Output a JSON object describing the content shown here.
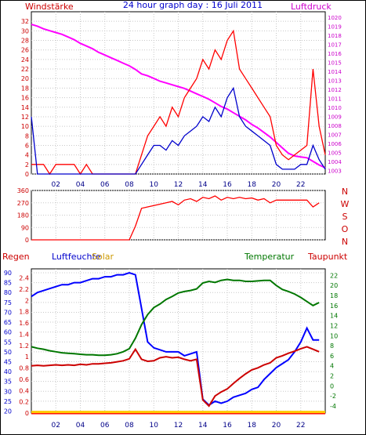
{
  "title": "24 hour graph day : 16 Juli 2011",
  "chart_data": [
    {
      "type": "line",
      "left_label": "Windstärke",
      "right_label": "Luftdruck",
      "x_ticks": [
        "02",
        "04",
        "06",
        "08",
        "10",
        "12",
        "14",
        "16",
        "18",
        "20",
        "22"
      ],
      "x_range_hours": [
        0,
        24
      ],
      "y_left_ticks": [
        0,
        2,
        4,
        6,
        8,
        10,
        12,
        14,
        16,
        18,
        20,
        22,
        24,
        26,
        28,
        30,
        32
      ],
      "y_left_range": [
        0,
        34
      ],
      "y_right_ticks": [
        1003,
        1004,
        1005,
        1006,
        1007,
        1008,
        1009,
        1010,
        1011,
        1012,
        1013,
        1014,
        1015,
        1016,
        1017,
        1018,
        1019,
        1020
      ],
      "y_right_range": [
        1002.6,
        1020.6
      ],
      "grid": true,
      "series": [
        {
          "name": "Luftdruck",
          "axis": "right",
          "color": "#ff00ff",
          "x": [
            0,
            0.5,
            1,
            1.5,
            2,
            2.5,
            3,
            3.5,
            4,
            4.5,
            5,
            5.5,
            6,
            6.5,
            7,
            7.5,
            8,
            8.5,
            9,
            9.5,
            10,
            10.5,
            11,
            11.5,
            12,
            12.5,
            13,
            13.5,
            14,
            14.5,
            15,
            15.5,
            16,
            16.5,
            17,
            17.5,
            18,
            18.5,
            19,
            19.5,
            20,
            20.5,
            21,
            21.5,
            22,
            22.5,
            23,
            23.5,
            24
          ],
          "y": [
            1019.2,
            1019.0,
            1018.7,
            1018.5,
            1018.3,
            1018.1,
            1017.8,
            1017.5,
            1017.1,
            1016.8,
            1016.5,
            1016.1,
            1015.8,
            1015.5,
            1015.2,
            1014.9,
            1014.6,
            1014.2,
            1013.7,
            1013.5,
            1013.2,
            1012.9,
            1012.7,
            1012.5,
            1012.3,
            1012.1,
            1011.8,
            1011.5,
            1011.2,
            1010.9,
            1010.5,
            1010.1,
            1009.8,
            1009.4,
            1009.0,
            1008.6,
            1008.1,
            1007.7,
            1007.2,
            1006.7,
            1006.1,
            1005.5,
            1004.9,
            1004.6,
            1004.5,
            1004.4,
            1004.0,
            1003.6,
            1003.3
          ]
        },
        {
          "name": "Windböen",
          "axis": "left",
          "color": "#ff0000",
          "x": [
            0,
            0.5,
            1,
            1.5,
            2,
            2.5,
            3,
            3.5,
            4,
            4.5,
            5,
            5.5,
            6,
            6.5,
            7,
            7.5,
            8,
            8.5,
            9,
            9.5,
            10,
            10.5,
            11,
            11.5,
            12,
            12.5,
            13,
            13.5,
            14,
            14.5,
            15,
            15.5,
            16,
            16.5,
            17,
            17.5,
            18,
            18.5,
            19,
            19.5,
            20,
            20.5,
            21,
            21.5,
            22,
            22.5,
            23,
            23.5,
            24
          ],
          "y": [
            2,
            2,
            2,
            0,
            2,
            2,
            2,
            2,
            0,
            2,
            0,
            0,
            0,
            0,
            0,
            0,
            0,
            0,
            4,
            8,
            10,
            12,
            10,
            14,
            12,
            16,
            18,
            20,
            24,
            22,
            26,
            24,
            28,
            30,
            22,
            20,
            18,
            16,
            14,
            12,
            6,
            4,
            3,
            4,
            5,
            6,
            22,
            10,
            4
          ]
        },
        {
          "name": "Windstärke",
          "axis": "left",
          "color": "#0000cc",
          "x": [
            0,
            0.5,
            1,
            1.5,
            2,
            2.5,
            3,
            3.5,
            4,
            4.5,
            5,
            5.5,
            6,
            6.5,
            7,
            7.5,
            8,
            8.5,
            9,
            9.5,
            10,
            10.5,
            11,
            11.5,
            12,
            12.5,
            13,
            13.5,
            14,
            14.5,
            15,
            15.5,
            16,
            16.5,
            17,
            17.5,
            18,
            18.5,
            19,
            19.5,
            20,
            20.5,
            21,
            21.5,
            22,
            22.5,
            23,
            23.5,
            24
          ],
          "y": [
            12,
            0,
            0,
            0,
            0,
            0,
            0,
            0,
            0,
            0,
            0,
            0,
            0,
            0,
            0,
            0,
            0,
            0,
            2,
            4,
            6,
            6,
            5,
            7,
            6,
            8,
            9,
            10,
            12,
            11,
            14,
            12,
            16,
            18,
            12,
            10,
            9,
            8,
            7,
            6,
            2,
            1,
            1,
            1,
            2,
            2,
            6,
            3,
            1
          ]
        }
      ]
    },
    {
      "type": "line",
      "left_label": "",
      "right_label": "",
      "direction_labels": [
        "N",
        "W",
        "S",
        "O",
        "N"
      ],
      "x_range_hours": [
        0,
        24
      ],
      "y_left_ticks": [
        0,
        90,
        180,
        270,
        360
      ],
      "y_left_range": [
        0,
        360
      ],
      "grid": true,
      "series": [
        {
          "name": "Windrichtung",
          "axis": "left",
          "color": "#ff0000",
          "x": [
            0,
            1,
            2,
            3,
            4,
            5,
            6,
            7,
            8,
            8.5,
            9,
            9.5,
            10,
            10.5,
            11,
            11.5,
            12,
            12.5,
            13,
            13.5,
            14,
            14.5,
            15,
            15.5,
            16,
            16.5,
            17,
            17.5,
            18,
            18.5,
            19,
            19.5,
            20,
            20.5,
            21,
            21.5,
            22,
            22.5,
            23,
            23.5
          ],
          "y": [
            0,
            0,
            0,
            0,
            0,
            0,
            0,
            0,
            0,
            100,
            230,
            240,
            250,
            260,
            270,
            280,
            255,
            290,
            300,
            280,
            310,
            300,
            320,
            290,
            310,
            300,
            310,
            300,
            305,
            290,
            300,
            270,
            290,
            290,
            290,
            290,
            290,
            290,
            240,
            270
          ]
        }
      ]
    },
    {
      "type": "line",
      "labels": {
        "regen": "Regen",
        "luftfeuchte": "Luftfeuchte",
        "solar": "Solar",
        "temperatur": "Temperatur",
        "taupunkt": "Taupunkt"
      },
      "x_ticks": [
        "02",
        "04",
        "06",
        "08",
        "10",
        "12",
        "14",
        "16",
        "18",
        "20",
        "22"
      ],
      "x_range_hours": [
        0,
        24
      ],
      "y_hum_ticks": [
        20,
        25,
        30,
        35,
        40,
        45,
        50,
        55,
        60,
        65,
        70,
        75,
        80,
        85,
        90
      ],
      "y_hum_range": [
        19,
        92
      ],
      "y_rain_ticks": [
        "0",
        "0.2",
        "0.4",
        "0.6",
        "0.8",
        "1",
        "1.2",
        "1.4",
        "1.6",
        "1.8",
        "2",
        "2.2",
        "2.4"
      ],
      "y_rain_range": [
        0,
        2.56
      ],
      "y_temp_ticks": [
        -4,
        -2,
        0,
        2,
        4,
        6,
        8,
        10,
        12,
        14,
        16,
        18,
        20,
        22
      ],
      "y_temp_range": [
        -5.4,
        23.3
      ],
      "grid": true,
      "series": [
        {
          "name": "Luftfeuchte",
          "axis": "humidity",
          "color": "#0000ff",
          "x": [
            0,
            0.5,
            1,
            1.5,
            2,
            2.5,
            3,
            3.5,
            4,
            4.5,
            5,
            5.5,
            6,
            6.5,
            7,
            7.5,
            8,
            8.5,
            9,
            9.5,
            10,
            10.5,
            11,
            11.5,
            12,
            12.5,
            13,
            13.5,
            14,
            14.5,
            15,
            15.5,
            16,
            16.5,
            17,
            17.5,
            18,
            18.5,
            19,
            19.5,
            20,
            20.5,
            21,
            21.5,
            22,
            22.5,
            23,
            23.5
          ],
          "y": [
            78,
            80,
            81,
            82,
            83,
            84,
            84,
            85,
            85,
            86,
            87,
            87,
            88,
            88,
            89,
            89,
            90,
            89,
            72,
            55,
            52,
            51,
            50,
            50,
            50,
            48,
            49,
            50,
            26,
            23,
            25,
            24,
            25,
            27,
            28,
            29,
            31,
            32,
            36,
            39,
            42,
            44,
            46,
            50,
            55,
            62,
            56,
            56
          ]
        },
        {
          "name": "Temperatur",
          "axis": "temperature",
          "color": "#007700",
          "x": [
            0,
            0.5,
            1,
            1.5,
            2,
            2.5,
            3,
            3.5,
            4,
            4.5,
            5,
            5.5,
            6,
            6.5,
            7,
            7.5,
            8,
            8.5,
            9,
            9.5,
            10,
            10.5,
            11,
            11.5,
            12,
            12.5,
            13,
            13.5,
            14,
            14.5,
            15,
            15.5,
            16,
            16.5,
            17,
            17.5,
            18,
            18.5,
            19,
            19.5,
            20,
            20.5,
            21,
            21.5,
            22,
            22.5,
            23,
            23.5
          ],
          "y": [
            7.8,
            7.5,
            7.3,
            7.0,
            6.8,
            6.6,
            6.5,
            6.4,
            6.3,
            6.2,
            6.2,
            6.1,
            6.1,
            6.2,
            6.4,
            6.8,
            7.4,
            9.5,
            12.2,
            14.2,
            15.6,
            16.3,
            17.2,
            17.8,
            18.5,
            18.8,
            19.0,
            19.3,
            20.5,
            20.8,
            20.6,
            21.0,
            21.2,
            21.0,
            21.0,
            20.8,
            20.8,
            20.9,
            21.0,
            21.0,
            20.0,
            19.2,
            18.8,
            18.3,
            17.6,
            16.8,
            16.0,
            16.6
          ]
        },
        {
          "name": "Taupunkt",
          "axis": "temperature",
          "color": "#cc0000",
          "x": [
            0,
            0.5,
            1,
            1.5,
            2,
            2.5,
            3,
            3.5,
            4,
            4.5,
            5,
            5.5,
            6,
            6.5,
            7,
            7.5,
            8,
            8.5,
            9,
            9.5,
            10,
            10.5,
            11,
            11.5,
            12,
            12.5,
            13,
            13.5,
            14,
            14.5,
            15,
            15.5,
            16,
            16.5,
            17,
            17.5,
            18,
            18.5,
            19,
            19.5,
            20,
            20.5,
            21,
            21.5,
            22,
            22.5,
            23,
            23.5
          ],
          "y": [
            4.0,
            4.1,
            4.0,
            4.1,
            4.2,
            4.1,
            4.2,
            4.1,
            4.3,
            4.2,
            4.4,
            4.4,
            4.5,
            4.6,
            4.8,
            5.0,
            5.4,
            7.3,
            5.3,
            4.9,
            5.0,
            5.6,
            5.8,
            5.6,
            5.7,
            5.3,
            5.0,
            5.3,
            -2.8,
            -4.0,
            -2.0,
            -1.2,
            -0.6,
            0.5,
            1.5,
            2.4,
            3.2,
            3.6,
            4.2,
            4.6,
            5.6,
            6.0,
            6.5,
            6.9,
            7.4,
            7.8,
            7.3,
            6.8
          ]
        },
        {
          "name": "Regen",
          "axis": "rain",
          "color": "#ff0000",
          "x": [
            0,
            24
          ],
          "y": [
            0,
            0
          ]
        },
        {
          "name": "Solar",
          "axis": "rain",
          "color": "#ffcc00",
          "x": [
            0,
            24
          ],
          "y": [
            0.02,
            0.02
          ]
        }
      ]
    }
  ]
}
